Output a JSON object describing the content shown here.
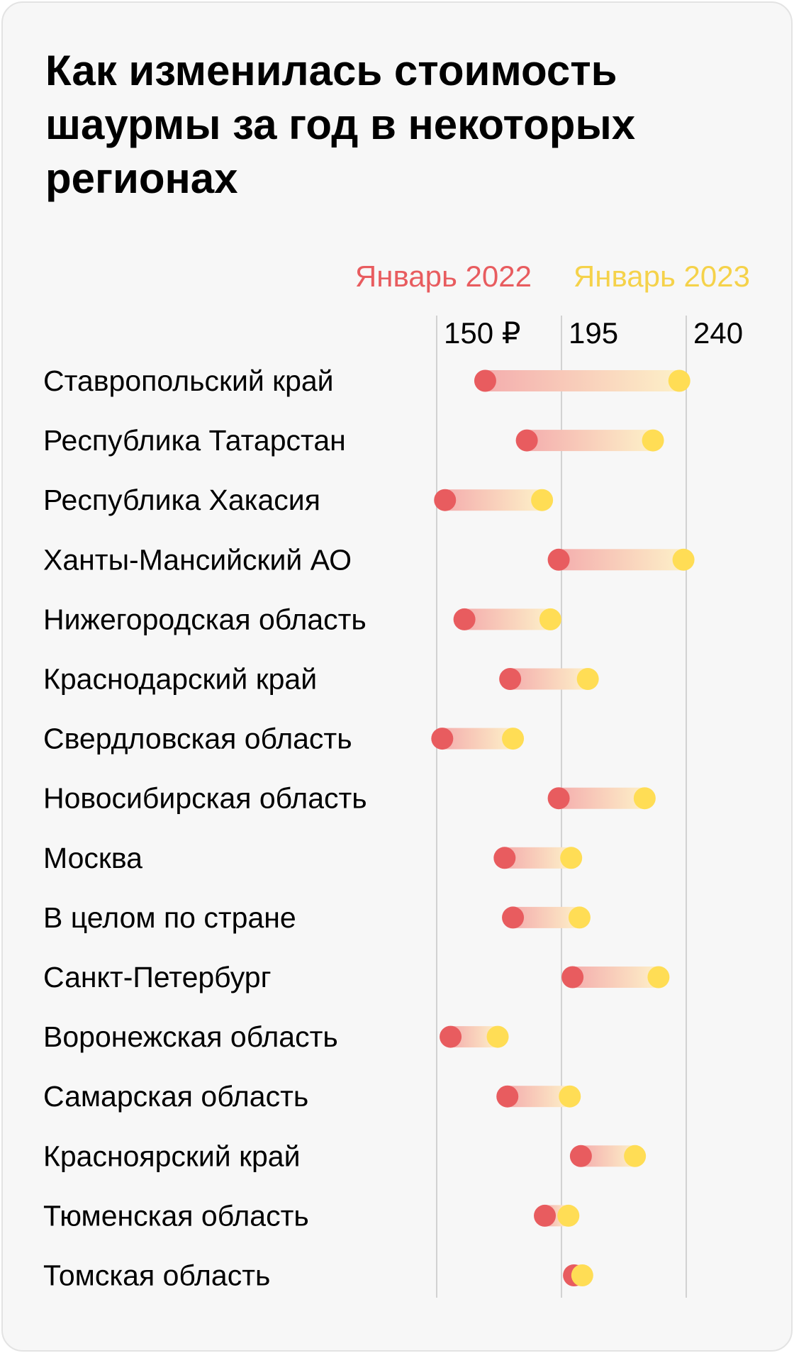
{
  "title": "Как изменилась стоимость шаурмы за год в некоторых регионах",
  "chart_data": {
    "type": "dumbbell",
    "title": "Как изменилась стоимость шаурмы за год в некоторых регионах",
    "xlabel": "",
    "ylabel": "",
    "xlim": [
      150,
      240
    ],
    "ticks": [
      150,
      195,
      240
    ],
    "tick_labels": [
      "150 ₽",
      "195",
      "240"
    ],
    "grid": true,
    "legend_position": "top-right",
    "categories": [
      "Ставропольский край",
      "Республика Татарстан",
      "Республика Хакасия",
      "Ханты-Мансийский АО",
      "Нижегородская область",
      "Краснодарский край",
      "Свердловская область",
      "Новосибирская область",
      "Москва",
      "В целом по стране",
      "Санкт-Петербург",
      "Воронежская область",
      "Самарская область",
      "Красноярский край",
      "Тюменская область",
      "Томская область"
    ],
    "series": [
      {
        "name": "Январь 2022",
        "color": "#e85c5f",
        "values": [
          167.5,
          182.5,
          153,
          194,
          160,
          176.5,
          152,
          194,
          174.5,
          177.5,
          199,
          155,
          175.5,
          202,
          189,
          199.5
        ]
      },
      {
        "name": "Январь 2023",
        "color": "#ffdd55",
        "values": [
          237.5,
          228,
          188,
          239,
          191,
          204.5,
          177.5,
          225,
          198.5,
          201.5,
          230,
          172,
          198,
          221.5,
          197.5,
          202.5
        ]
      }
    ]
  }
}
